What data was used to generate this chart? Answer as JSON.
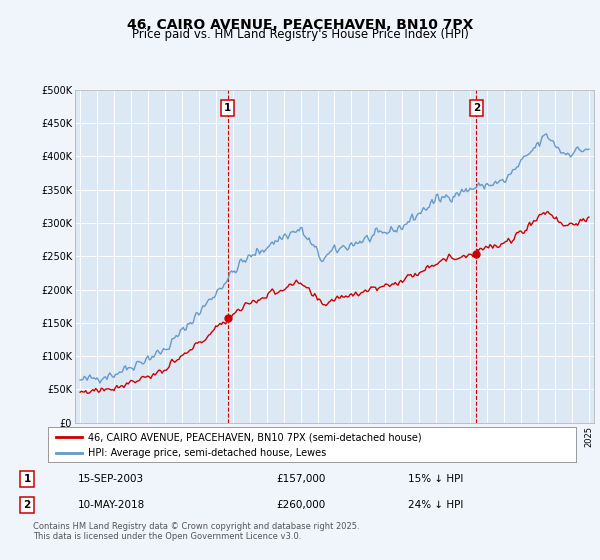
{
  "title": "46, CAIRO AVENUE, PEACEHAVEN, BN10 7PX",
  "subtitle": "Price paid vs. HM Land Registry's House Price Index (HPI)",
  "title_fontsize": 10,
  "subtitle_fontsize": 8.5,
  "bg_color": "#f0f4fb",
  "plot_bg_color": "#dde8f5",
  "grid_color": "#ffffff",
  "red_color": "#cc0000",
  "blue_color": "#6699cc",
  "marker1_x": 2003.71,
  "marker2_x": 2018.36,
  "marker1_label": "1",
  "marker2_label": "2",
  "marker1_date": "15-SEP-2003",
  "marker1_price": "£157,000",
  "marker1_hpi": "15% ↓ HPI",
  "marker2_date": "10-MAY-2018",
  "marker2_price": "£260,000",
  "marker2_hpi": "24% ↓ HPI",
  "legend_red": "46, CAIRO AVENUE, PEACEHAVEN, BN10 7PX (semi-detached house)",
  "legend_blue": "HPI: Average price, semi-detached house, Lewes",
  "footer": "Contains HM Land Registry data © Crown copyright and database right 2025.\nThis data is licensed under the Open Government Licence v3.0.",
  "ylim": [
    0,
    500000
  ],
  "yticks": [
    0,
    50000,
    100000,
    150000,
    200000,
    250000,
    300000,
    350000,
    400000,
    450000,
    500000
  ],
  "xlim_start": 1994.7,
  "xlim_end": 2025.3
}
